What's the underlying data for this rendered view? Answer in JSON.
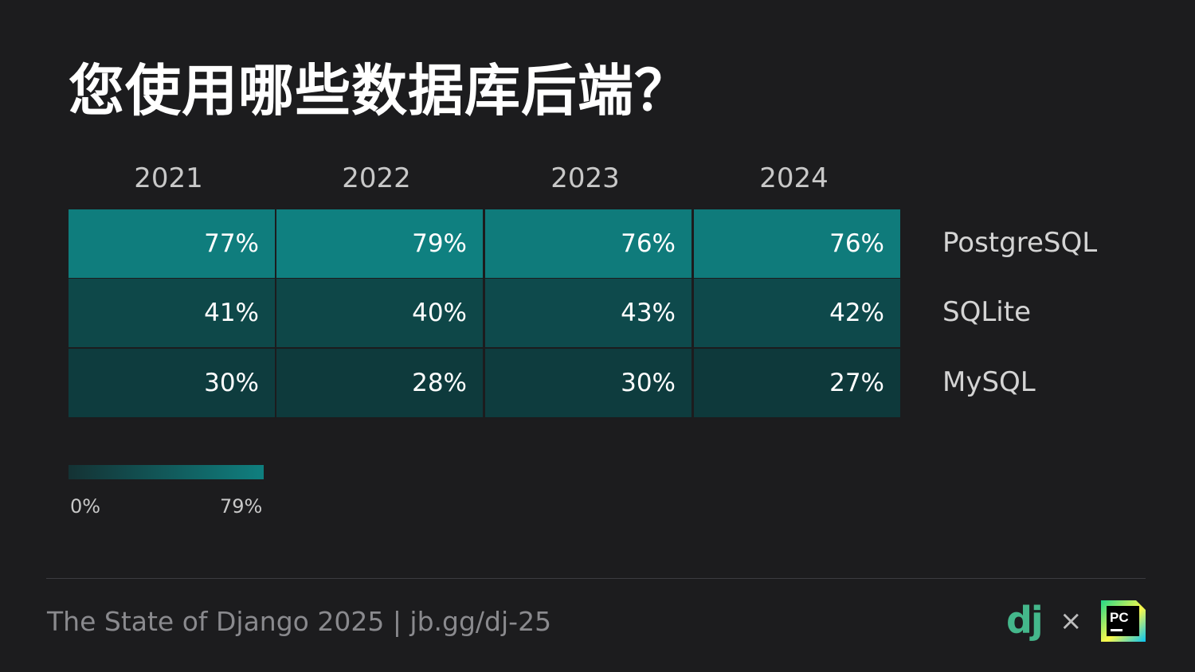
{
  "title": "您使用哪些数据库后端？",
  "chart_data": {
    "type": "heatmap",
    "columns": [
      "2021",
      "2022",
      "2023",
      "2024"
    ],
    "rows": [
      "PostgreSQL",
      "SQLite",
      "MySQL"
    ],
    "values": [
      [
        77,
        79,
        76,
        76
      ],
      [
        41,
        40,
        43,
        42
      ],
      [
        30,
        28,
        30,
        27
      ]
    ],
    "value_labels": [
      [
        "77%",
        "79%",
        "76%",
        "76%"
      ],
      [
        "41%",
        "40%",
        "43%",
        "42%"
      ],
      [
        "30%",
        "28%",
        "30%",
        "27%"
      ]
    ],
    "color_scale": {
      "min": 0,
      "max": 79,
      "min_label": "0%",
      "max_label": "79%",
      "min_color": "#0e2a2c",
      "max_color": "#0f8080"
    }
  },
  "footer": {
    "text": "The State of Django 2025 | jb.gg/dj-25"
  },
  "logos": {
    "django": "dj",
    "separator": "×",
    "pycharm": "PC"
  },
  "colors": {
    "background": "#1c1c1e",
    "django_green": "#44b78b"
  }
}
